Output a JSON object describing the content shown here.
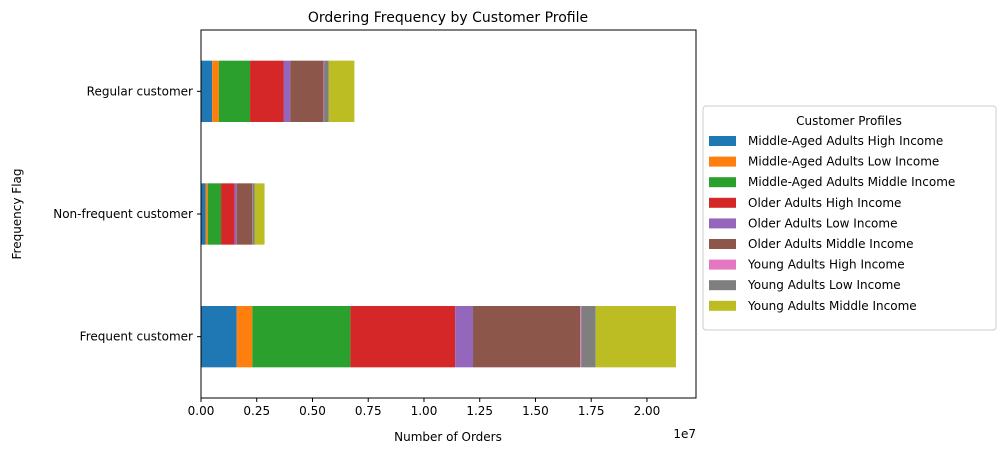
{
  "chart_data": {
    "type": "bar",
    "orientation": "horizontal",
    "stacked": true,
    "title": "Ordering Frequency by Customer Profile",
    "xlabel": "Number of Orders",
    "ylabel": "Frequency Flag",
    "x_offset_label": "1e7",
    "xlim": [
      0,
      2.22
    ],
    "x_ticks": [
      0,
      0.25,
      0.5,
      0.75,
      1.0,
      1.25,
      1.5,
      1.75,
      2.0
    ],
    "x_tick_labels": [
      "0.00",
      "0.25",
      "0.50",
      "0.75",
      "1.00",
      "1.25",
      "1.50",
      "1.75",
      "2.00"
    ],
    "categories": [
      "Frequent customer",
      "Non-frequent customer",
      "Regular customer"
    ],
    "series": [
      {
        "name": "Middle-Aged Adults High Income",
        "color": "#1f77b4",
        "values": [
          0.16,
          0.02,
          0.05
        ]
      },
      {
        "name": "Middle-Aged Adults Low Income",
        "color": "#ff7f0e",
        "values": [
          0.07,
          0.01,
          0.03
        ]
      },
      {
        "name": "Middle-Aged Adults Middle Income",
        "color": "#2ca02c",
        "values": [
          0.44,
          0.06,
          0.14
        ]
      },
      {
        "name": "Older Adults High Income",
        "color": "#d62728",
        "values": [
          0.47,
          0.06,
          0.15
        ]
      },
      {
        "name": "Older Adults Low Income",
        "color": "#9467bd",
        "values": [
          0.08,
          0.01,
          0.03
        ]
      },
      {
        "name": "Older Adults Middle Income",
        "color": "#8c564b",
        "values": [
          0.48,
          0.07,
          0.15
        ]
      },
      {
        "name": "Young Adults High Income",
        "color": "#e377c2",
        "values": [
          0.005,
          0.001,
          0.002
        ]
      },
      {
        "name": "Young Adults Low Income",
        "color": "#7f7f7f",
        "values": [
          0.065,
          0.009,
          0.021
        ]
      },
      {
        "name": "Young Adults Middle Income",
        "color": "#bcbd22",
        "values": [
          0.36,
          0.045,
          0.115
        ]
      }
    ],
    "legend": {
      "title": "Customer Profiles",
      "placement": "right"
    },
    "grid": false
  }
}
